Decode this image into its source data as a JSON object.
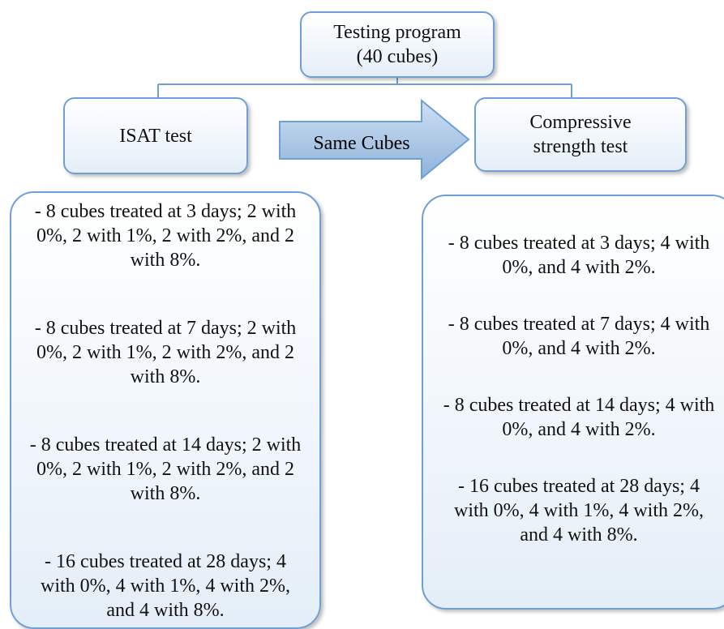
{
  "header": {
    "title": "Testing program",
    "subtitle": "(40 cubes)"
  },
  "nodes": [
    {
      "label": "ISAT test",
      "items": [
        "- 8 cubes treated at 3 days; 2 with 0%, 2 with 1%, 2 with 2%, and 2 with 8%.",
        "- 8 cubes treated at 7 days; 2 with 0%, 2 with 1%, 2 with 2%, and 2 with 8%.",
        "- 8 cubes treated at 14 days; 2 with 0%, 2 with 1%, 2 with 2%, and 2 with 8%.",
        "- 16 cubes treated at 28 days; 4 with 0%, 4 with 1%, 4 with 2%, and 4 with 8%."
      ]
    },
    {
      "label": "Compressive strength test",
      "items": [
        "- 8 cubes treated at 3 days; 4 with 0%, and 4 with 2%.",
        "- 8 cubes treated at 7 days; 4 with 0%, and 4 with 2%.",
        "- 8 cubes treated at 14 days; 4 with 0%, and 4 with 2%.",
        "- 16 cubes treated at 28 days; 4 with 0%, 4 with 1%, 4 with 2%, and 4 with 8%."
      ]
    }
  ],
  "arrow": {
    "label": "Same Cubes"
  }
}
